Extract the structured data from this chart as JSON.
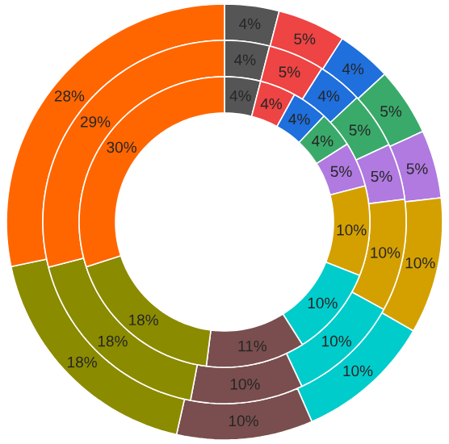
{
  "chart_data": {
    "type": "donut",
    "categories": [
      null,
      null,
      null,
      null,
      null,
      null,
      null,
      null,
      null,
      null
    ],
    "colors": [
      "#555555",
      "#ee4444",
      "#1f6fdd",
      "#3aaa6a",
      "#b07ae0",
      "#d4a000",
      "#00cccc",
      "#7a4e4e",
      "#8b8b00",
      "#ff6600"
    ],
    "series": [
      {
        "values": [
          4,
          5,
          4,
          5,
          5,
          10,
          10,
          10,
          18,
          28
        ],
        "value_labels": [
          "4%",
          "5%",
          "4%",
          "5%",
          "5%",
          "10%",
          "10%",
          "10%",
          "18%",
          "28%"
        ]
      },
      {
        "values": [
          4,
          5,
          4,
          5,
          5,
          10,
          10,
          10,
          18,
          29
        ],
        "value_labels": [
          "4%",
          "5%",
          "4%",
          "5%",
          "5%",
          "10%",
          "10%",
          "10%",
          "18%",
          "29%"
        ]
      },
      {
        "values": [
          4,
          4,
          4,
          4,
          5,
          10,
          10,
          11,
          18,
          30
        ],
        "value_labels": [
          "4%",
          "4%",
          "4%",
          "4%",
          "5%",
          "10%",
          "10%",
          "11%",
          "18%",
          "30%"
        ]
      }
    ]
  }
}
